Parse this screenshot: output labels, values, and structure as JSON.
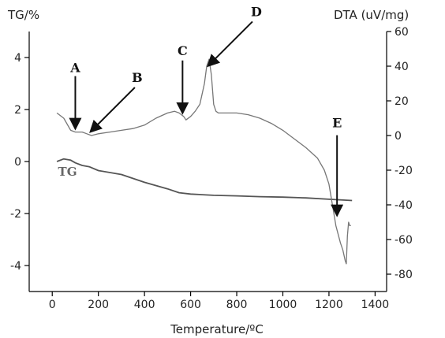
{
  "chart_data": {
    "type": "line",
    "xlabel": "Temperature/ºC",
    "ylabel_left": "TG/%",
    "ylabel_right": "DTA (uV/mg)",
    "xlim": [
      -100,
      1450
    ],
    "xticks": [
      0,
      200,
      400,
      600,
      800,
      1000,
      1200,
      1400
    ],
    "ylim_left": [
      -5,
      5
    ],
    "yticks_left": [
      -4,
      -2,
      0,
      2,
      4
    ],
    "ylim_right": [
      -90,
      60
    ],
    "yticks_right": [
      -80,
      -60,
      -40,
      -20,
      0,
      20,
      40,
      60
    ],
    "grid": false,
    "series": [
      {
        "name": "TG",
        "axis": "left",
        "color": "#555555",
        "x": [
          20,
          50,
          80,
          100,
          130,
          160,
          200,
          300,
          400,
          500,
          550,
          600,
          700,
          800,
          900,
          1000,
          1100,
          1200,
          1300
        ],
        "y": [
          0.0,
          0.1,
          0.05,
          -0.05,
          -0.15,
          -0.2,
          -0.35,
          -0.5,
          -0.8,
          -1.05,
          -1.2,
          -1.25,
          -1.3,
          -1.32,
          -1.35,
          -1.37,
          -1.4,
          -1.45,
          -1.5
        ]
      },
      {
        "name": "",
        "axis": "right",
        "color": "#777777",
        "x": [
          20,
          50,
          80,
          100,
          130,
          150,
          170,
          200,
          250,
          300,
          350,
          400,
          450,
          500,
          530,
          550,
          560,
          570,
          580,
          600,
          620,
          640,
          660,
          670,
          680,
          690,
          700,
          710,
          720,
          730,
          750,
          800,
          850,
          900,
          950,
          1000,
          1050,
          1100,
          1150,
          1180,
          1200,
          1220,
          1230,
          1240,
          1250,
          1260,
          1270,
          1275,
          1280,
          1285,
          1290,
          1295
        ],
        "y": [
          13,
          10,
          3,
          2,
          2,
          1,
          0,
          1,
          2,
          3,
          4,
          6,
          10,
          13,
          14,
          13,
          12,
          11,
          9,
          11,
          14,
          18,
          30,
          40,
          44,
          35,
          18,
          14,
          13,
          13,
          13,
          13,
          12,
          10,
          7,
          3,
          -2,
          -7,
          -13,
          -20,
          -28,
          -44,
          -52,
          -57,
          -62,
          -66,
          -72,
          -74,
          -58,
          -50,
          -52,
          -52
        ]
      }
    ],
    "annotations": [
      {
        "label": "A",
        "x": 100,
        "y_right": 2
      },
      {
        "label": "B",
        "x": 170,
        "y_right": 0
      },
      {
        "label": "C",
        "x": 565,
        "y_right": 11
      },
      {
        "label": "D",
        "x": 680,
        "y_right": 38
      },
      {
        "label": "E",
        "x": 1235,
        "y_right": -48
      }
    ],
    "series_labels": [
      {
        "text": "TG"
      }
    ]
  },
  "colors": {
    "tg": "#555555",
    "dta": "#777777",
    "axis": "#000000"
  }
}
